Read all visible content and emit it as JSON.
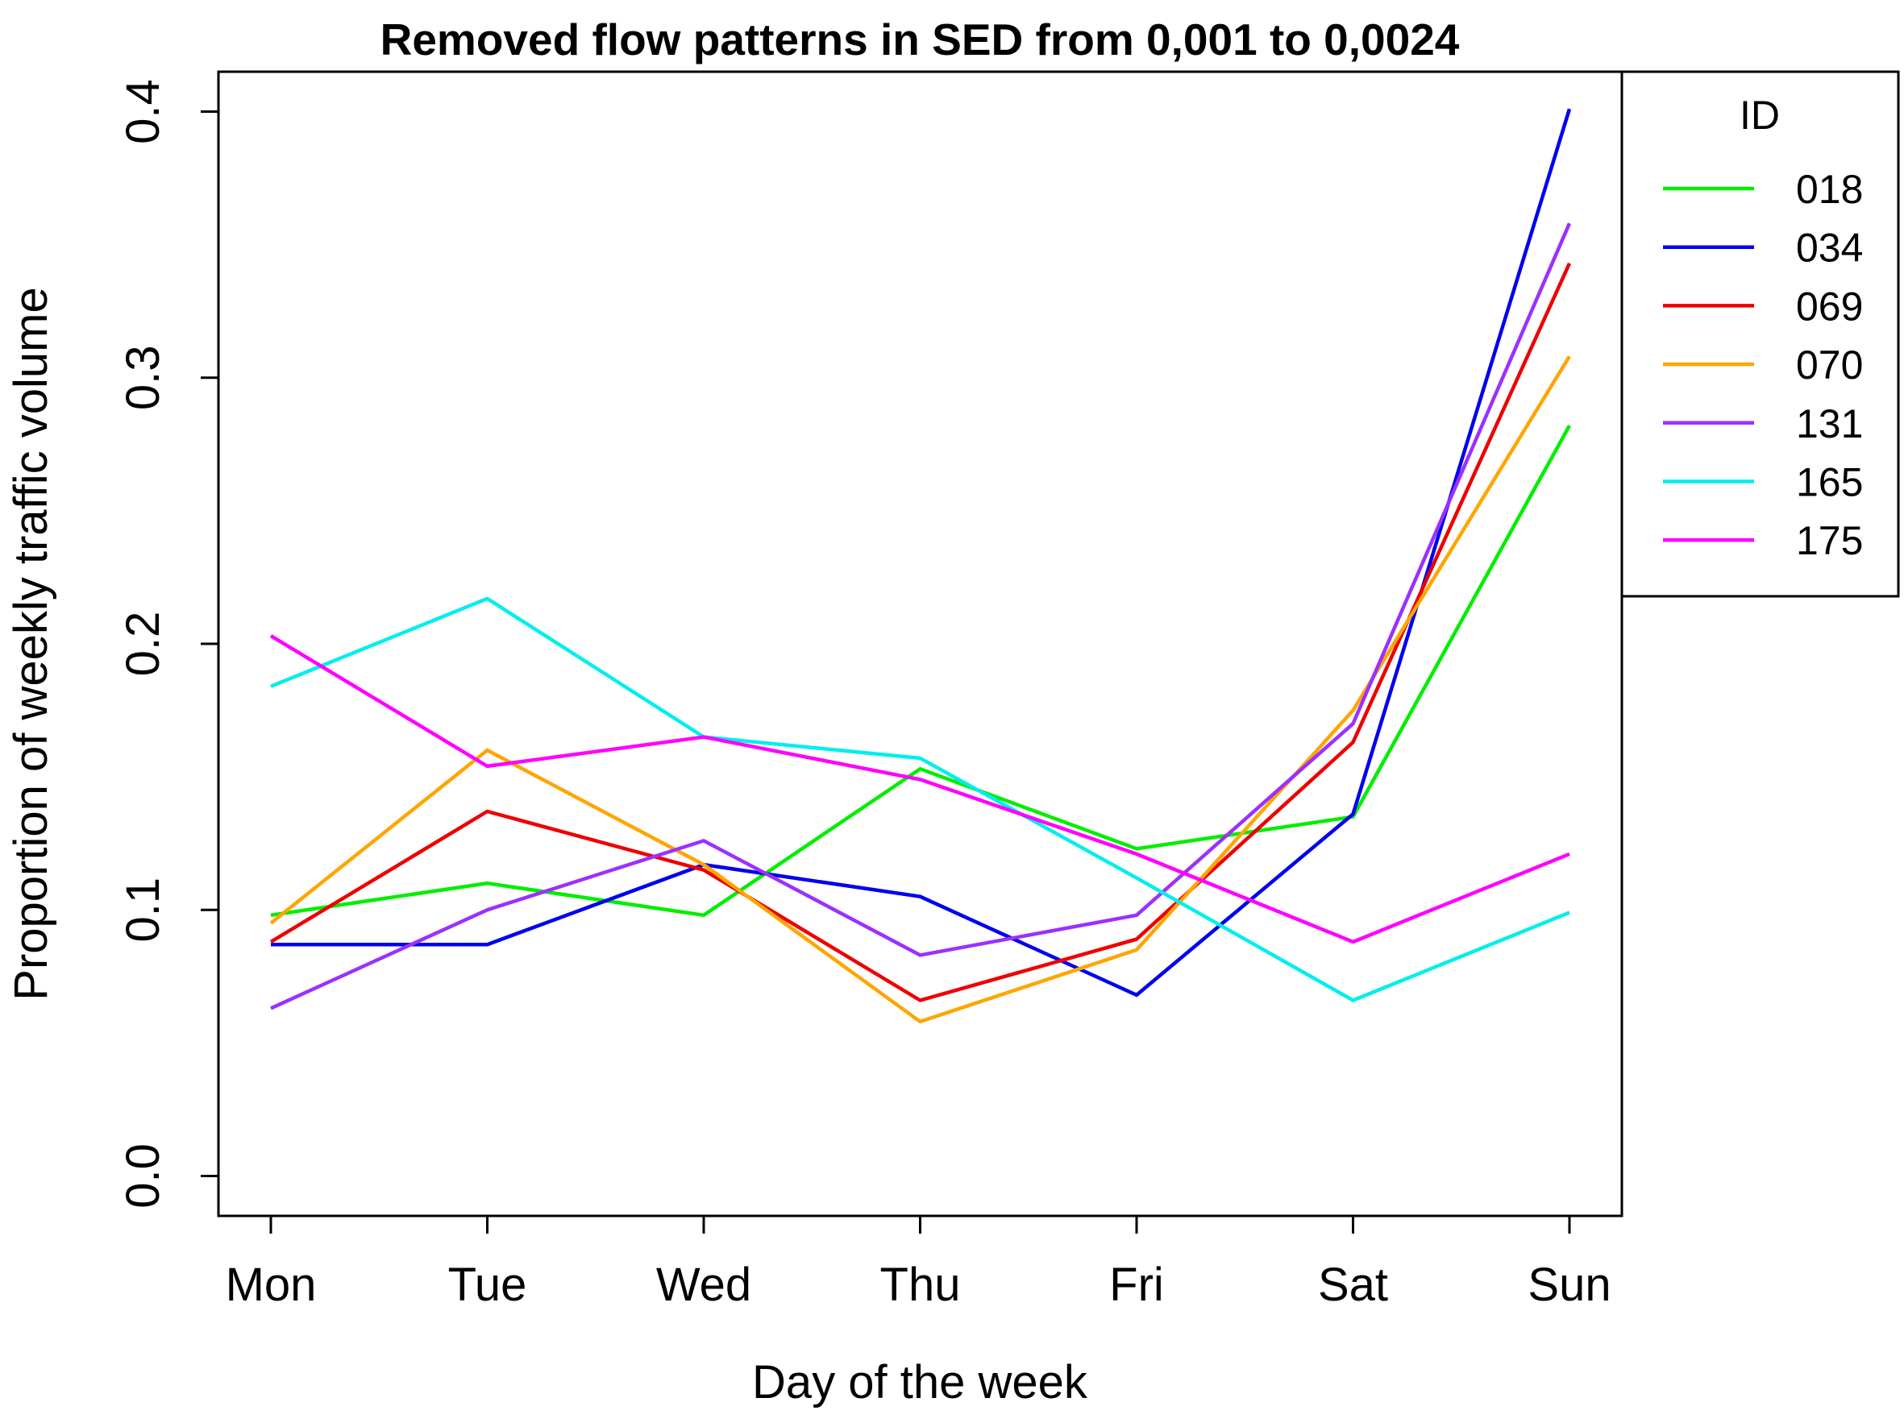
{
  "chart_data": {
    "type": "line",
    "title": "Removed flow patterns in SED from 0,001 to 0,0024",
    "xlabel": "Day of the week",
    "ylabel": "Proportion of weekly traffic volume",
    "categories": [
      "Mon",
      "Tue",
      "Wed",
      "Thu",
      "Fri",
      "Sat",
      "Sun"
    ],
    "yticks": [
      "0.0",
      "0.1",
      "0.2",
      "0.3",
      "0.4"
    ],
    "ylim": [
      -0.015,
      0.415
    ],
    "grid": false,
    "legend": {
      "title": "ID",
      "position": "top-right"
    },
    "series": [
      {
        "name": "018",
        "color": "#00ee00",
        "values": [
          0.098,
          0.11,
          0.098,
          0.153,
          0.123,
          0.135,
          0.282
        ]
      },
      {
        "name": "034",
        "color": "#0000ee",
        "values": [
          0.087,
          0.087,
          0.117,
          0.105,
          0.068,
          0.136,
          0.401
        ]
      },
      {
        "name": "069",
        "color": "#ee0000",
        "values": [
          0.088,
          0.137,
          0.115,
          0.066,
          0.089,
          0.163,
          0.343
        ]
      },
      {
        "name": "070",
        "color": "#ffa500",
        "values": [
          0.095,
          0.16,
          0.117,
          0.058,
          0.085,
          0.175,
          0.308
        ]
      },
      {
        "name": "131",
        "color": "#9b30ff",
        "values": [
          0.063,
          0.1,
          0.126,
          0.083,
          0.098,
          0.17,
          0.358
        ]
      },
      {
        "name": "165",
        "color": "#00eeee",
        "values": [
          0.184,
          0.217,
          0.165,
          0.157,
          0.112,
          0.066,
          0.099
        ]
      },
      {
        "name": "175",
        "color": "#ff00ff",
        "values": [
          0.203,
          0.154,
          0.165,
          0.149,
          0.121,
          0.088,
          0.121
        ]
      }
    ]
  }
}
